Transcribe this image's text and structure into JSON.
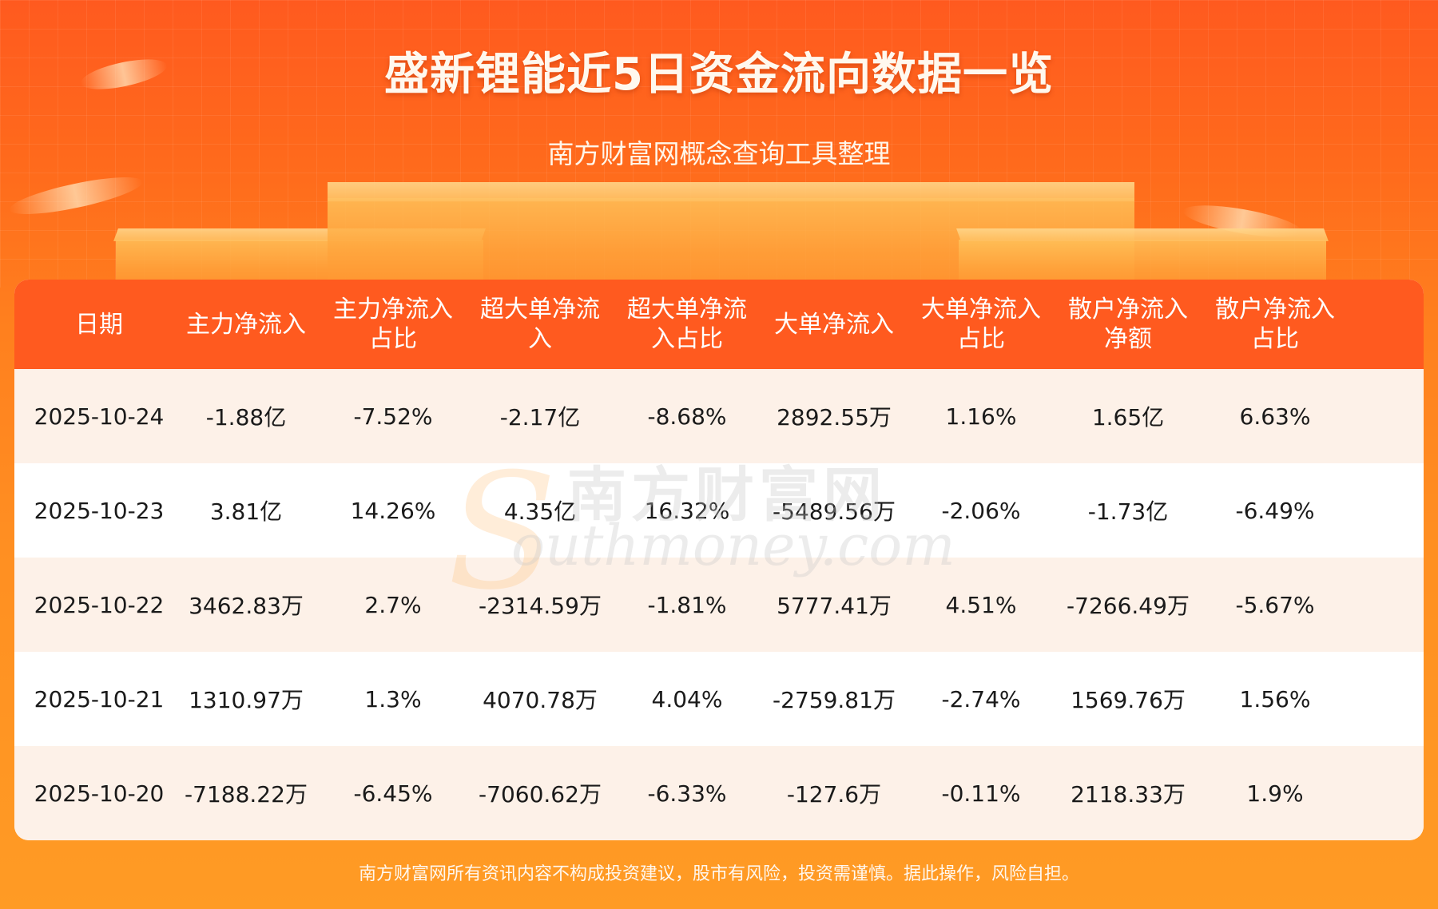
{
  "header": {
    "title": "盛新锂能近5日资金流向数据一览",
    "subtitle": "南方财富网概念查询工具整理"
  },
  "watermark": {
    "cn": "南方财富网",
    "en": "outhmoney.com",
    "s_letter": "S"
  },
  "table": {
    "columns": [
      "日期",
      "主力净流入",
      "主力净流入占比",
      "超大单净流入",
      "超大单净流入占比",
      "大单净流入",
      "大单净流入占比",
      "散户净流入净额",
      "散户净流入占比"
    ],
    "rows": [
      [
        "2025-10-24",
        "-1.88亿",
        "-7.52%",
        "-2.17亿",
        "-8.68%",
        "2892.55万",
        "1.16%",
        "1.65亿",
        "6.63%"
      ],
      [
        "2025-10-23",
        "3.81亿",
        "14.26%",
        "4.35亿",
        "16.32%",
        "-5489.56万",
        "-2.06%",
        "-1.73亿",
        "-6.49%"
      ],
      [
        "2025-10-22",
        "3462.83万",
        "2.7%",
        "-2314.59万",
        "-1.81%",
        "5777.41万",
        "4.51%",
        "-7266.49万",
        "-5.67%"
      ],
      [
        "2025-10-21",
        "1310.97万",
        "1.3%",
        "4070.78万",
        "4.04%",
        "-2759.81万",
        "-2.74%",
        "1569.76万",
        "1.56%"
      ],
      [
        "2025-10-20",
        "-7188.22万",
        "-6.45%",
        "-7060.62万",
        "-6.33%",
        "-127.6万",
        "-0.11%",
        "2118.33万",
        "1.9%"
      ]
    ]
  },
  "footer": {
    "disclaimer": "南方财富网所有资讯内容不构成投资建议，股市有风险，投资需谨慎。据此操作，风险自担。"
  },
  "colors": {
    "header_bg": "#ff5a1f",
    "row_odd": "#fdf1e8",
    "row_even": "#ffffff"
  }
}
